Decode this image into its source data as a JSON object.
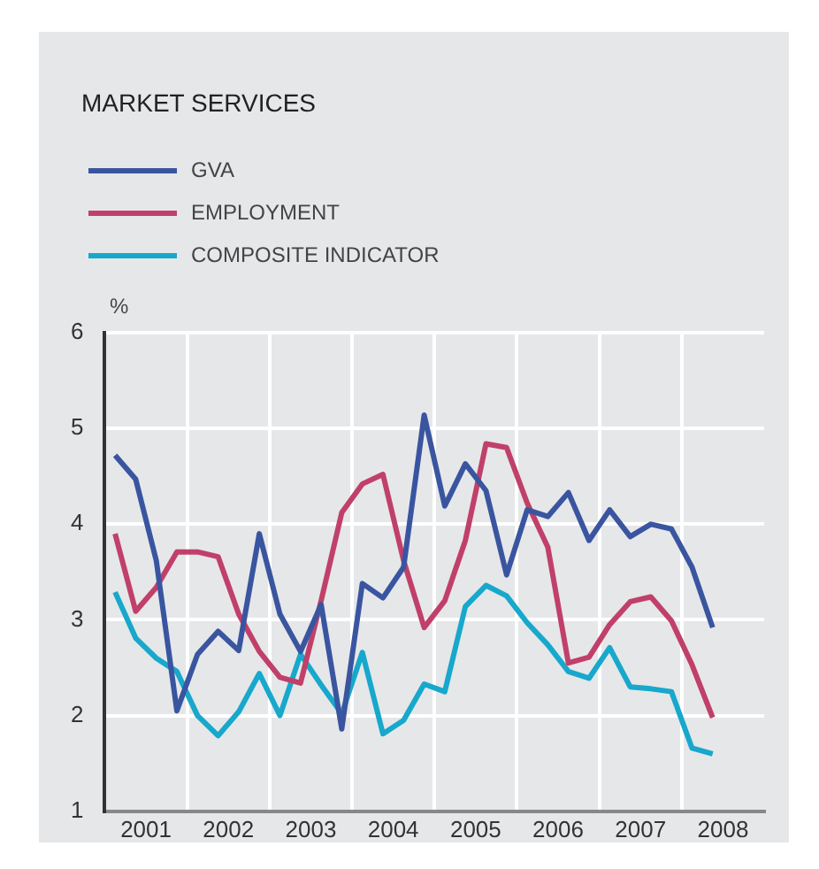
{
  "chart_data": {
    "type": "line",
    "title": "MARKET SERVICES",
    "ylabel": "%",
    "x": [
      2001.125,
      2001.375,
      2001.625,
      2001.875,
      2002.125,
      2002.375,
      2002.625,
      2002.875,
      2003.125,
      2003.375,
      2003.625,
      2003.875,
      2004.125,
      2004.375,
      2004.625,
      2004.875,
      2005.125,
      2005.375,
      2005.625,
      2005.875,
      2006.125,
      2006.375,
      2006.625,
      2006.875,
      2007.125,
      2007.375,
      2007.625,
      2007.875,
      2008.125,
      2008.375
    ],
    "series": [
      {
        "name": "GVA",
        "color": "#3a55a0",
        "values": [
          4.72,
          4.47,
          3.62,
          2.05,
          2.64,
          2.88,
          2.68,
          3.9,
          3.06,
          2.67,
          3.16,
          1.86,
          3.38,
          3.23,
          3.55,
          5.14,
          4.19,
          4.63,
          4.35,
          3.47,
          4.15,
          4.08,
          4.33,
          3.83,
          4.15,
          3.87,
          4.0,
          3.95,
          3.55,
          2.92
        ]
      },
      {
        "name": "EMPLOYMENT",
        "color": "#c0406a",
        "values": [
          3.9,
          3.09,
          3.34,
          3.71,
          3.71,
          3.66,
          3.06,
          2.67,
          2.4,
          2.34,
          3.2,
          4.12,
          4.42,
          4.52,
          3.62,
          2.92,
          3.2,
          3.83,
          4.84,
          4.8,
          4.22,
          3.76,
          2.55,
          2.61,
          2.95,
          3.19,
          3.24,
          2.99,
          2.53,
          1.98
        ]
      },
      {
        "name": "COMPOSITE INDICATOR",
        "color": "#17a8cc",
        "values": [
          3.29,
          2.81,
          2.6,
          2.46,
          2.0,
          1.79,
          2.04,
          2.44,
          2.0,
          2.64,
          2.32,
          2.02,
          2.66,
          1.81,
          1.95,
          2.33,
          2.25,
          3.14,
          3.36,
          3.25,
          2.97,
          2.74,
          2.46,
          2.39,
          2.71,
          2.3,
          2.28,
          2.25,
          1.66,
          1.6
        ]
      }
    ],
    "xlim": [
      2001,
      2009
    ],
    "xticks": [
      {
        "value": 2001.5,
        "label": "2001"
      },
      {
        "value": 2002,
        "label": null
      },
      {
        "value": 2002.5,
        "label": "2002"
      },
      {
        "value": 2003,
        "label": null
      },
      {
        "value": 2003.5,
        "label": "2003"
      },
      {
        "value": 2004,
        "label": null
      },
      {
        "value": 2004.5,
        "label": "2004"
      },
      {
        "value": 2005,
        "label": null
      },
      {
        "value": 2005.5,
        "label": "2005"
      },
      {
        "value": 2006,
        "label": null
      },
      {
        "value": 2006.5,
        "label": "2006"
      },
      {
        "value": 2007,
        "label": null
      },
      {
        "value": 2007.5,
        "label": "2007"
      },
      {
        "value": 2008,
        "label": null
      },
      {
        "value": 2008.5,
        "label": "2008"
      }
    ],
    "ylim": [
      1,
      6
    ],
    "yticks": [
      1,
      2,
      3,
      4,
      5,
      6
    ],
    "grid": true,
    "legend": "top left",
    "marker": "none",
    "line_style": "solid"
  }
}
